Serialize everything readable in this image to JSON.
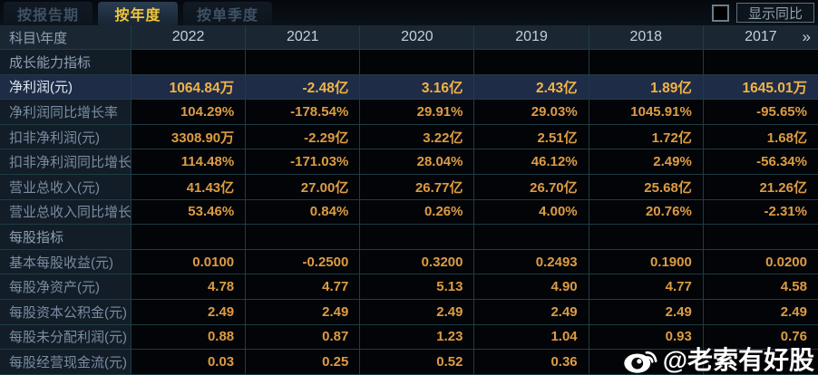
{
  "tabs": [
    {
      "label": "按报告期",
      "active": false
    },
    {
      "label": "按年度",
      "active": true
    },
    {
      "label": "按单季度",
      "active": false
    }
  ],
  "controls": {
    "show_yoy_label": "显示同比",
    "checkbox_checked": false
  },
  "table": {
    "corner_label": "科目\\年度",
    "years": [
      "2022",
      "2021",
      "2020",
      "2019",
      "2018",
      "2017"
    ],
    "more_icon": "»",
    "rows": [
      {
        "type": "section",
        "label": "成长能力指标",
        "values": [
          "",
          "",
          "",
          "",
          "",
          ""
        ]
      },
      {
        "type": "data",
        "highlight": true,
        "label": "净利润(元)",
        "values": [
          "1064.84万",
          "-2.48亿",
          "3.16亿",
          "2.43亿",
          "1.89亿",
          "1645.01万"
        ]
      },
      {
        "type": "data",
        "label": "净利润同比增长率",
        "values": [
          "104.29%",
          "-178.54%",
          "29.91%",
          "29.03%",
          "1045.91%",
          "-95.65%"
        ]
      },
      {
        "type": "data",
        "label": "扣非净利润(元)",
        "values": [
          "3308.90万",
          "-2.29亿",
          "3.22亿",
          "2.51亿",
          "1.72亿",
          "1.68亿"
        ]
      },
      {
        "type": "data",
        "label": "扣非净利润同比增长率",
        "values": [
          "114.48%",
          "-171.03%",
          "28.04%",
          "46.12%",
          "2.49%",
          "-56.34%"
        ]
      },
      {
        "type": "data",
        "label": "营业总收入(元)",
        "values": [
          "41.43亿",
          "27.00亿",
          "26.77亿",
          "26.70亿",
          "25.68亿",
          "21.26亿"
        ]
      },
      {
        "type": "data",
        "label": "营业总收入同比增长率",
        "values": [
          "53.46%",
          "0.84%",
          "0.26%",
          "4.00%",
          "20.76%",
          "-2.31%"
        ]
      },
      {
        "type": "section",
        "label": "每股指标",
        "values": [
          "",
          "",
          "",
          "",
          "",
          ""
        ]
      },
      {
        "type": "data",
        "label": "基本每股收益(元)",
        "values": [
          "0.0100",
          "-0.2500",
          "0.3200",
          "0.2493",
          "0.1900",
          "0.0200"
        ]
      },
      {
        "type": "data",
        "label": "每股净资产(元)",
        "values": [
          "4.78",
          "4.77",
          "5.13",
          "4.90",
          "4.77",
          "4.58"
        ]
      },
      {
        "type": "data",
        "label": "每股资本公积金(元)",
        "values": [
          "2.49",
          "2.49",
          "2.49",
          "2.49",
          "2.49",
          "2.49"
        ]
      },
      {
        "type": "data",
        "label": "每股未分配利润(元)",
        "values": [
          "0.88",
          "0.87",
          "1.23",
          "1.04",
          "0.93",
          "0.76"
        ]
      },
      {
        "type": "data",
        "label": "每股经营现金流(元)",
        "values": [
          "0.03",
          "0.25",
          "0.52",
          "0.36",
          "",
          ""
        ]
      }
    ]
  },
  "watermark": {
    "handle": "@老索有好股"
  },
  "colors": {
    "accent_gold": "#f2c43a",
    "value_orange": "#dd9c44",
    "highlight_row_bg": "#1e2c47",
    "grid_border": "#1e3d44",
    "header_bg": "#1a2733",
    "label_cell_bg": "#121d28"
  }
}
